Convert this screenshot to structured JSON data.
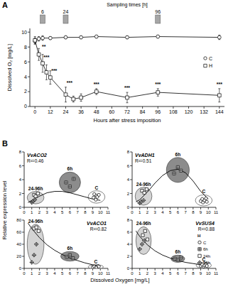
{
  "figure": {
    "panel_labels": [
      "A",
      "B"
    ],
    "x_label": "Dissolved Oxygen [mg/L]",
    "y_label": "Relative expression level"
  },
  "chart_data": [
    {
      "type": "line",
      "x_label": "Hours after stress imposition",
      "y_label": "Dissolved O₂ [mg/L]",
      "xlim": [
        -4,
        148
      ],
      "xticks": [
        0,
        12,
        24,
        36,
        48,
        60,
        72,
        84,
        96,
        108,
        120,
        132,
        144
      ],
      "ylim": [
        0,
        10.5
      ],
      "yticks": [
        0,
        2,
        4,
        6,
        8,
        10
      ],
      "legend": "right",
      "sampling_times": {
        "label": "Sampling times [h]",
        "values": [
          6,
          24,
          96
        ]
      },
      "series": [
        {
          "name": "C",
          "color": "#000000",
          "marker": "circle",
          "line_style": "solid",
          "x": [
            0,
            3,
            6,
            12,
            24,
            36,
            48,
            72,
            96,
            144
          ],
          "values": [
            8.8,
            9.1,
            9.2,
            9.2,
            9.3,
            9.3,
            9.4,
            9.3,
            9.4,
            9.3
          ],
          "errors": [
            0.4,
            0.3,
            0.3,
            0.2,
            0.2,
            0.2,
            0.2,
            0.2,
            0.2,
            0.3
          ]
        },
        {
          "name": "H",
          "color": "#000000",
          "marker": "square",
          "line_style": "solid",
          "x": [
            0,
            3,
            6,
            9,
            12,
            24,
            30,
            36,
            48,
            72,
            96,
            144
          ],
          "values": [
            8.9,
            7.0,
            5.8,
            4.6,
            3.9,
            1.6,
            1.0,
            1.2,
            2.0,
            1.2,
            1.9,
            1.5
          ],
          "errors": [
            0.5,
            0.8,
            1.2,
            1.0,
            0.9,
            1.0,
            0.4,
            0.5,
            0.4,
            0.7,
            0.5,
            0.9
          ]
        }
      ],
      "annotations": [
        {
          "text": "**",
          "x": 7,
          "y": 7.8
        },
        {
          "text": "***",
          "x": 9,
          "y": 6.4
        },
        {
          "text": "***",
          "x": 15,
          "y": 4.6
        },
        {
          "text": "***",
          "x": 27,
          "y": 3.0
        },
        {
          "text": "***",
          "x": 48,
          "y": 2.8
        },
        {
          "text": "***",
          "x": 72,
          "y": 2.3
        },
        {
          "text": "***",
          "x": 96,
          "y": 2.8
        },
        {
          "text": "***",
          "x": 144,
          "y": 2.8
        }
      ]
    },
    {
      "type": "scatter",
      "title": "VvACO2",
      "subtitle": "R²=0.46",
      "xlim": [
        0,
        11
      ],
      "xticks": [
        0,
        1,
        2,
        3,
        4,
        5,
        6,
        7,
        8,
        9,
        10,
        11
      ],
      "ylim": [
        0,
        8
      ],
      "yticks": [
        0,
        2,
        4,
        6,
        8
      ],
      "series": [
        {
          "name": "C",
          "color": "#000000",
          "marker": "circle",
          "x": [
            9.1,
            9.2,
            9.4,
            9.5,
            9.6,
            9.8
          ],
          "values": [
            1.4,
            1.9,
            1.1,
            1.7,
            1.5,
            1.8
          ]
        },
        {
          "name": "6h",
          "color": "#000000",
          "marker": "square-cross",
          "x": [
            5.5,
            6.0,
            6.5
          ],
          "values": [
            3.6,
            3.0,
            4.1
          ]
        },
        {
          "name": "24h",
          "color": "#000000",
          "marker": "square",
          "x": [
            1.3,
            1.5,
            1.8
          ],
          "values": [
            1.8,
            1.6,
            2.0
          ]
        },
        {
          "name": "96h",
          "color": "#000000",
          "marker": "diamond-cross",
          "x": [
            1.0,
            1.2,
            1.4
          ],
          "values": [
            0.7,
            0.9,
            1.1
          ]
        },
        {
          "type": "line",
          "color": "#000000",
          "line_style": "solid",
          "x": [
            0.5,
            1,
            2,
            3,
            4,
            5,
            6,
            7,
            8,
            9,
            10
          ],
          "values": [
            0.7,
            1.0,
            1.6,
            2.1,
            2.3,
            2.3,
            2.1,
            1.8,
            1.5,
            1.2,
            1.0
          ]
        }
      ],
      "groups": [
        {
          "label": "24-96h",
          "center": [
            1.5,
            1.4
          ],
          "radius": [
            1.1,
            0.9
          ],
          "color": "#d4d4d4"
        },
        {
          "label": "6h",
          "center": [
            6.0,
            3.6
          ],
          "radius": [
            1.4,
            1.5
          ],
          "color": "#8c8c8c"
        },
        {
          "label": "C",
          "center": [
            9.5,
            1.5
          ],
          "radius": [
            1.1,
            0.9
          ],
          "color": "#ffffff"
        }
      ]
    },
    {
      "type": "scatter",
      "title": "VvADH1",
      "subtitle": "R²=0.51",
      "xlim": [
        0,
        11
      ],
      "xticks": [
        0,
        1,
        2,
        3,
        4,
        5,
        6,
        7,
        8,
        9,
        10,
        11
      ],
      "ylim": [
        0,
        8
      ],
      "yticks": [
        0,
        2,
        4,
        6,
        8
      ],
      "series": [
        {
          "name": "C",
          "color": "#000000",
          "marker": "circle",
          "x": [
            9.0,
            9.2,
            9.3,
            9.5,
            9.7,
            9.8
          ],
          "values": [
            0.9,
            1.2,
            0.7,
            1.0,
            1.3,
            0.8
          ]
        },
        {
          "name": "6h",
          "color": "#000000",
          "marker": "square-cross",
          "x": [
            5.5,
            6.0,
            6.4
          ],
          "values": [
            4.9,
            5.8,
            5.3
          ]
        },
        {
          "name": "24h",
          "color": "#000000",
          "marker": "square",
          "x": [
            1.3,
            1.6,
            1.9
          ],
          "values": [
            2.4,
            2.1,
            2.6
          ]
        },
        {
          "name": "96h",
          "color": "#000000",
          "marker": "diamond-cross",
          "x": [
            1.0,
            1.2,
            1.5
          ],
          "values": [
            0.6,
            0.8,
            1.0
          ]
        },
        {
          "type": "line",
          "color": "#000000",
          "line_style": "solid",
          "x": [
            0.5,
            1,
            2,
            3,
            4,
            5,
            6,
            7,
            8,
            9,
            10
          ],
          "values": [
            0.8,
            1.1,
            2.2,
            3.5,
            4.6,
            5.3,
            5.5,
            5.0,
            3.8,
            2.3,
            1.2
          ]
        }
      ],
      "groups": [
        {
          "label": "24-96h",
          "center": [
            1.5,
            1.6
          ],
          "radius": [
            1.1,
            1.3
          ],
          "color": "#d4d4d4"
        },
        {
          "label": "6h",
          "center": [
            6.0,
            5.4
          ],
          "radius": [
            1.5,
            1.8
          ],
          "color": "#8c8c8c"
        },
        {
          "label": "C",
          "center": [
            9.4,
            1.0
          ],
          "radius": [
            1.1,
            0.8
          ],
          "color": "#ffffff"
        }
      ]
    },
    {
      "type": "scatter",
      "title": "VvACO1",
      "subtitle": "R²=0.82",
      "xlim": [
        0,
        11
      ],
      "xticks": [
        0,
        1,
        2,
        3,
        4,
        5,
        6,
        7,
        8,
        9,
        10,
        11
      ],
      "ylim": [
        0,
        80
      ],
      "yticks": [
        0,
        20,
        40,
        60,
        80
      ],
      "series": [
        {
          "name": "C",
          "color": "#000000",
          "marker": "circle",
          "x": [
            9.0,
            9.2,
            9.4,
            9.5,
            9.7,
            9.8
          ],
          "values": [
            2,
            3,
            1,
            2,
            4,
            3
          ]
        },
        {
          "name": "6h",
          "color": "#000000",
          "marker": "square-cross",
          "x": [
            5.6,
            6.0,
            6.4
          ],
          "values": [
            19,
            22,
            17
          ]
        },
        {
          "name": "24h",
          "color": "#000000",
          "marker": "square",
          "x": [
            1.3,
            1.6,
            1.9
          ],
          "values": [
            66,
            68,
            62
          ]
        },
        {
          "name": "96h",
          "color": "#000000",
          "marker": "diamond-cross",
          "x": [
            1.0,
            1.3,
            1.6
          ],
          "values": [
            10,
            22,
            40
          ]
        },
        {
          "type": "line",
          "color": "#000000",
          "line_style": "solid",
          "x": [
            0.5,
            1,
            2,
            3,
            4,
            5,
            6,
            7,
            8,
            9,
            10
          ],
          "values": [
            75,
            66,
            51,
            39,
            30,
            23,
            17,
            13,
            9,
            6,
            4
          ]
        }
      ],
      "groups": [
        {
          "label": "24-96h",
          "center": [
            1.5,
            40
          ],
          "radius": [
            1.1,
            33
          ],
          "color": "#d4d4d4"
        },
        {
          "label": "6h",
          "center": [
            6.0,
            20
          ],
          "radius": [
            1.2,
            8
          ],
          "color": "#8c8c8c"
        },
        {
          "label": "C",
          "center": [
            9.4,
            2.5
          ],
          "radius": [
            1.0,
            3.5
          ],
          "color": "#ffffff"
        }
      ]
    },
    {
      "type": "scatter",
      "title": "VvSUS4",
      "subtitle": "R²=0.88",
      "xlim": [
        0,
        11
      ],
      "xticks": [
        0,
        1,
        2,
        3,
        4,
        5,
        6,
        7,
        8,
        9,
        10,
        11
      ],
      "ylim": [
        0,
        8
      ],
      "yticks": [
        0,
        2,
        4,
        6,
        8
      ],
      "legend": "upper right",
      "legend_title": "H",
      "series": [
        {
          "name": "C",
          "color": "#000000",
          "marker": "circle",
          "x": [
            9.0,
            9.2,
            9.4,
            9.5,
            9.7,
            9.8
          ],
          "values": [
            0.4,
            0.6,
            0.3,
            0.5,
            0.7,
            0.4
          ]
        },
        {
          "name": "6h",
          "color": "#000000",
          "marker": "square-cross",
          "x": [
            5.6,
            6.0,
            6.4
          ],
          "values": [
            1.6,
            1.4,
            1.8
          ]
        },
        {
          "name": "24h",
          "color": "#000000",
          "marker": "square",
          "x": [
            1.4,
            1.7,
            2.0
          ],
          "values": [
            5.5,
            6.2,
            4.8
          ]
        },
        {
          "name": "96h",
          "color": "#000000",
          "marker": "diamond-cross",
          "x": [
            1.0,
            1.3,
            1.6
          ],
          "values": [
            3.2,
            4.0,
            4.6
          ]
        },
        {
          "type": "line",
          "color": "#000000",
          "line_style": "solid",
          "x": [
            0.5,
            1,
            2,
            3,
            4,
            5,
            6,
            7,
            8,
            9,
            10
          ],
          "values": [
            6.2,
            5.3,
            3.9,
            2.9,
            2.2,
            1.7,
            1.3,
            1.0,
            0.8,
            0.6,
            0.5
          ]
        }
      ],
      "groups": [
        {
          "label": "24-96h",
          "center": [
            1.5,
            4.6
          ],
          "radius": [
            1.0,
            2.3
          ],
          "color": "#d4d4d4"
        },
        {
          "label": "6h",
          "center": [
            6.0,
            1.6
          ],
          "radius": [
            0.9,
            0.6
          ],
          "color": "#8c8c8c"
        },
        {
          "label": "C",
          "center": [
            9.4,
            0.5
          ],
          "radius": [
            1.0,
            0.5
          ],
          "color": "#ffffff"
        }
      ]
    }
  ]
}
